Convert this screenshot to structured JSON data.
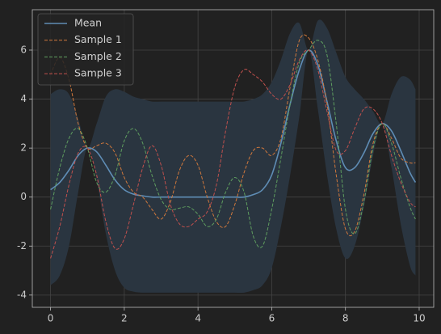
{
  "chart_data": {
    "type": "line",
    "x": [
      0,
      0.25,
      0.5,
      0.75,
      1,
      1.25,
      1.5,
      1.75,
      2,
      2.25,
      2.5,
      2.75,
      3,
      3.25,
      3.5,
      3.75,
      4,
      4.25,
      4.5,
      4.75,
      5,
      5.25,
      5.5,
      5.75,
      6,
      6.25,
      6.5,
      6.75,
      7,
      7.25,
      7.5,
      7.75,
      8,
      8.25,
      8.5,
      8.75,
      9,
      9.25,
      9.5,
      9.75,
      9.9
    ],
    "band": {
      "color": "#2a3540",
      "upper": [
        4.2,
        4.4,
        4.2,
        3.2,
        2.0,
        3.0,
        4.1,
        4.4,
        4.3,
        4.1,
        4.0,
        3.9,
        3.9,
        3.9,
        3.9,
        3.9,
        3.9,
        3.9,
        3.9,
        3.9,
        3.9,
        3.9,
        4.0,
        4.2,
        4.7,
        5.6,
        6.7,
        7.1,
        6.0,
        7.2,
        6.9,
        5.9,
        4.9,
        4.4,
        4.0,
        3.5,
        3.0,
        4.2,
        4.9,
        4.8,
        4.4
      ],
      "lower": [
        -3.6,
        -3.2,
        -2.0,
        0.2,
        2.0,
        0.7,
        -1.5,
        -3.0,
        -3.7,
        -3.86,
        -3.9,
        -3.9,
        -3.9,
        -3.9,
        -3.9,
        -3.9,
        -3.9,
        -3.9,
        -3.9,
        -3.9,
        -3.9,
        -3.9,
        -3.8,
        -3.6,
        -2.9,
        -1.2,
        0.9,
        3.3,
        6.0,
        3.6,
        0.9,
        -1.3,
        -2.5,
        -2.0,
        -0.4,
        1.7,
        3.0,
        1.2,
        -1.1,
        -2.8,
        -3.2
      ]
    },
    "series": [
      {
        "name": "Mean",
        "color": "#5f8db5",
        "dashed": false,
        "values": [
          0.3,
          0.6,
          1.1,
          1.7,
          2.0,
          1.85,
          1.3,
          0.7,
          0.3,
          0.12,
          0.05,
          0,
          0,
          0,
          0,
          0,
          0,
          0,
          0,
          0,
          0,
          0,
          0.1,
          0.3,
          0.9,
          2.2,
          3.8,
          5.2,
          6.0,
          5.4,
          3.9,
          2.3,
          1.2,
          1.2,
          1.8,
          2.6,
          3.0,
          2.7,
          1.9,
          1.0,
          0.6
        ]
      },
      {
        "name": "Sample 1",
        "color": "#d0783c",
        "dashed": true,
        "values": [
          5.0,
          5.7,
          4.8,
          3.0,
          2.0,
          2.1,
          2.2,
          1.8,
          0.8,
          0.2,
          0.0,
          -0.5,
          -0.9,
          -0.2,
          1.1,
          1.7,
          1.3,
          0.0,
          -1.0,
          -1.2,
          -0.3,
          1.0,
          1.9,
          2.0,
          1.7,
          2.4,
          4.5,
          6.4,
          6.5,
          5.6,
          3.8,
          0.9,
          -1.3,
          -1.4,
          0.1,
          2.2,
          3.0,
          2.4,
          1.6,
          1.4,
          1.4
        ]
      },
      {
        "name": "Sample 2",
        "color": "#5f9e5f",
        "dashed": true,
        "values": [
          -0.5,
          1.2,
          2.4,
          2.8,
          2.0,
          0.6,
          0.2,
          0.9,
          2.3,
          2.8,
          2.2,
          0.9,
          -0.1,
          -0.5,
          -0.45,
          -0.4,
          -0.7,
          -1.2,
          -0.9,
          0.2,
          0.8,
          0.2,
          -1.6,
          -2.0,
          -0.5,
          1.6,
          3.8,
          5.5,
          6.0,
          6.4,
          5.8,
          3.0,
          -0.5,
          -1.5,
          -0.2,
          2.0,
          3.0,
          2.2,
          0.8,
          -0.4,
          -0.9
        ]
      },
      {
        "name": "Sample 3",
        "color": "#c0504d",
        "dashed": true,
        "values": [
          -2.5,
          -1.2,
          0.5,
          1.8,
          2.0,
          0.9,
          -1.0,
          -2.1,
          -1.7,
          -0.3,
          1.2,
          2.1,
          1.3,
          -0.3,
          -1.1,
          -1.2,
          -0.9,
          -0.6,
          0.5,
          2.7,
          4.5,
          5.2,
          5.0,
          4.7,
          4.2,
          4.0,
          4.6,
          5.6,
          6.0,
          5.2,
          3.5,
          1.9,
          1.9,
          2.8,
          3.6,
          3.6,
          3.0,
          1.7,
          0.6,
          -0.2,
          -0.4
        ]
      }
    ],
    "xlim": [
      -0.495,
      10.395
    ],
    "ylim": [
      -4.5,
      7.65
    ],
    "xticks": [
      0,
      2,
      4,
      6,
      8,
      10
    ],
    "yticks": [
      -4,
      -2,
      0,
      2,
      4,
      6
    ],
    "grid": true,
    "legend": "upper left"
  }
}
